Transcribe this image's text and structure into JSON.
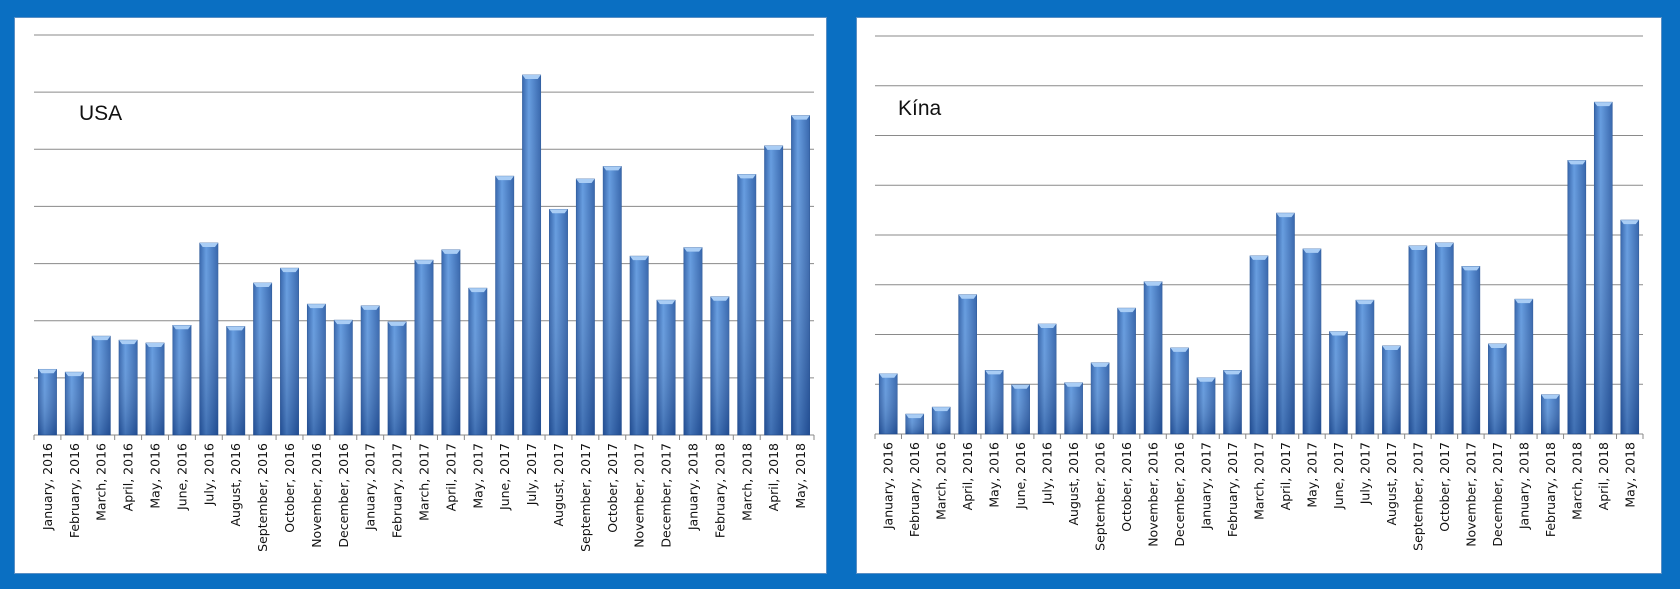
{
  "chart_data": [
    {
      "type": "bar",
      "title": "USA",
      "xlabel": "",
      "ylabel": "",
      "ylim": [
        0,
        7
      ],
      "grid": true,
      "yunits": "gridline intervals (no axis values printed)",
      "categories": [
        "January, 2016",
        "February, 2016",
        "March, 2016",
        "April, 2016",
        "May, 2016",
        "June, 2016",
        "July, 2016",
        "August, 2016",
        "September, 2016",
        "October, 2016",
        "November, 2016",
        "December, 2016",
        "January, 2017",
        "February, 2017",
        "March, 2017",
        "April, 2017",
        "May, 2017",
        "June, 2017",
        "July, 2017",
        "August, 2017",
        "September, 2017",
        "October, 2017",
        "November, 2017",
        "December, 2017",
        "January, 2018",
        "February, 2018",
        "March, 2018",
        "April, 2018",
        "May, 2018"
      ],
      "values": [
        1.15,
        1.1,
        1.73,
        1.66,
        1.61,
        1.92,
        3.36,
        1.9,
        2.66,
        2.92,
        2.29,
        2.01,
        2.26,
        1.98,
        3.06,
        3.24,
        2.57,
        4.53,
        6.3,
        3.95,
        4.48,
        4.7,
        3.13,
        2.36,
        3.28,
        2.42,
        4.56,
        5.06,
        5.59
      ]
    },
    {
      "type": "bar",
      "title": "Kína",
      "xlabel": "",
      "ylabel": "",
      "ylim": [
        0,
        8
      ],
      "grid": true,
      "yunits": "gridline intervals (no axis values printed)",
      "categories": [
        "January, 2016",
        "February, 2016",
        "March, 2016",
        "April, 2016",
        "May, 2016",
        "June, 2016",
        "July, 2016",
        "August, 2016",
        "September, 2016",
        "October, 2016",
        "November, 2016",
        "December, 2016",
        "January, 2017",
        "February, 2017",
        "March, 2017",
        "April, 2017",
        "May, 2017",
        "June, 2017",
        "July, 2017",
        "August, 2017",
        "September, 2017",
        "October, 2017",
        "November, 2017",
        "December, 2017",
        "January, 2018",
        "February, 2018",
        "March, 2018",
        "April, 2018",
        "May, 2018"
      ],
      "values": [
        1.21,
        0.4,
        0.54,
        2.8,
        1.28,
        0.99,
        2.21,
        1.03,
        1.43,
        2.53,
        3.06,
        1.73,
        1.13,
        1.28,
        3.58,
        4.44,
        3.72,
        2.06,
        2.69,
        1.77,
        3.78,
        3.84,
        3.37,
        1.81,
        2.71,
        0.79,
        5.5,
        6.67,
        4.3
      ]
    }
  ],
  "colors": {
    "bar_light": "#5d97de",
    "bar_dark": "#2c5ea8",
    "background": "#0a6fc2",
    "grid": "#8a8a8a"
  }
}
